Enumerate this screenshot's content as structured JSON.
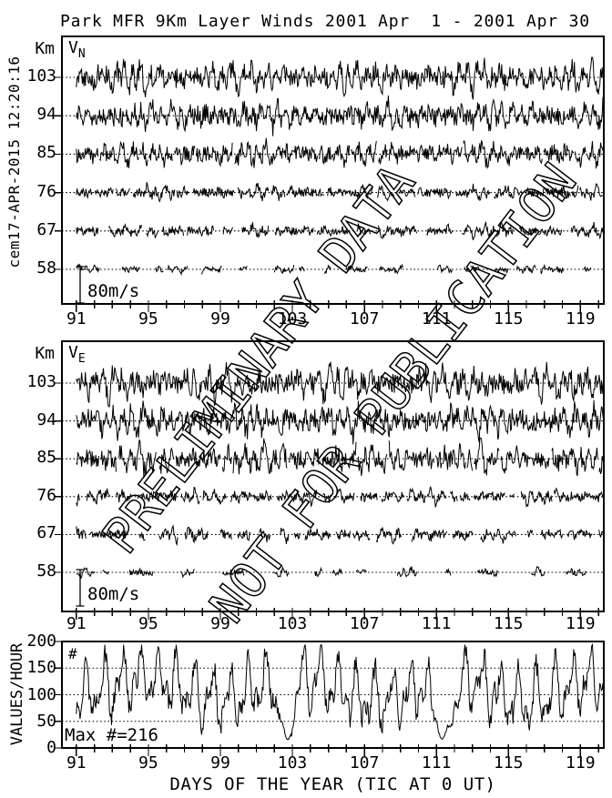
{
  "header": {
    "title": "Park MFR 9Km Layer Winds 2001 Apr  1 - 2001 Apr 30",
    "timestamp": "cem17-APR-2015 12:20:16"
  },
  "watermark": {
    "line1": "PRELIMINARY DATA",
    "line2": "NOT FOR PUBLICATION"
  },
  "colors": {
    "ink": "#000000",
    "background": "#ffffff"
  },
  "chart_data": {
    "type": "line",
    "x_axis": {
      "label": "DAYS OF THE YEAR (TIC AT 0 UT)",
      "xlim": [
        90.2,
        120.3
      ],
      "tick_interval_days": 1,
      "labeled_ticks": [
        91,
        95,
        99,
        103,
        107,
        111,
        115,
        119
      ]
    },
    "wind_panels": [
      {
        "name": "meridional-wind",
        "label": "V",
        "label_sub": "N",
        "y_unit": "Km",
        "y_tick_labels_km": [
          103,
          94,
          85,
          76,
          67,
          58
        ],
        "scale_bar": {
          "label": "80m/s",
          "value_ms": 80
        },
        "grid": "dotted-baseline-per-altitude",
        "traces": [
          {
            "altitude_km": 103,
            "amplitude_ms": 38,
            "coverage": 1.0,
            "seed": 11
          },
          {
            "altitude_km": 94,
            "amplitude_ms": 36,
            "coverage": 1.0,
            "seed": 12
          },
          {
            "altitude_km": 85,
            "amplitude_ms": 30,
            "coverage": 0.98,
            "seed": 13
          },
          {
            "altitude_km": 76,
            "amplitude_ms": 17,
            "coverage": 0.93,
            "seed": 14
          },
          {
            "altitude_km": 67,
            "amplitude_ms": 16,
            "coverage": 0.85,
            "seed": 15
          },
          {
            "altitude_km": 58,
            "amplitude_ms": 10,
            "coverage": 0.5,
            "seed": 16
          }
        ]
      },
      {
        "name": "zonal-wind",
        "label": "V",
        "label_sub": "E",
        "y_unit": "Km",
        "y_tick_labels_km": [
          103,
          94,
          85,
          76,
          67,
          58
        ],
        "scale_bar": {
          "label": "80m/s",
          "value_ms": 80
        },
        "grid": "dotted-baseline-per-altitude",
        "traces": [
          {
            "altitude_km": 103,
            "amplitude_ms": 42,
            "coverage": 1.0,
            "seed": 21
          },
          {
            "altitude_km": 94,
            "amplitude_ms": 40,
            "coverage": 1.0,
            "seed": 22
          },
          {
            "altitude_km": 85,
            "amplitude_ms": 36,
            "coverage": 0.97,
            "seed": 23
          },
          {
            "altitude_km": 76,
            "amplitude_ms": 18,
            "coverage": 0.9,
            "seed": 24
          },
          {
            "altitude_km": 67,
            "amplitude_ms": 17,
            "coverage": 0.8,
            "seed": 25
          },
          {
            "altitude_km": 58,
            "amplitude_ms": 11,
            "coverage": 0.45,
            "seed": 26
          }
        ]
      }
    ],
    "count_panel": {
      "name": "values-per-hour",
      "ylabel": "VALUES/HOUR",
      "ylim": [
        0,
        200
      ],
      "y_ticks": [
        0,
        50,
        100,
        150,
        200
      ],
      "dotted_gridlines": [
        50,
        100,
        150
      ],
      "series_symbol": "#",
      "max_annotation": "Max #=216",
      "max_value": 216,
      "typical_range": [
        40,
        190
      ],
      "deep_dip_days": [
        102.7,
        111.4
      ],
      "seed": 31
    }
  }
}
